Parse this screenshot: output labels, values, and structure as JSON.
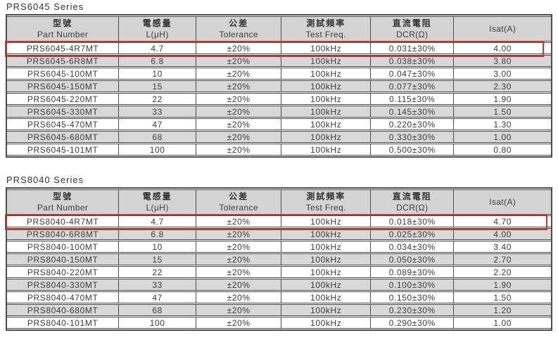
{
  "colors": {
    "accent": "#c7372d",
    "border": "#4d4d4d",
    "header-bg": "#d4d4d4",
    "stripe": "#d8d8d8",
    "text": "#3c3c3c",
    "page-bg": "#ffffff"
  },
  "tables": [
    {
      "title": "PRS6045 Series",
      "headers": [
        {
          "key": "part-number",
          "zh": "型號",
          "en": "Part Number"
        },
        {
          "key": "inductance",
          "zh": "電感量",
          "en": "L(μH)"
        },
        {
          "key": "tolerance",
          "zh": "公差",
          "en": "Tolerance"
        },
        {
          "key": "test-freq",
          "zh": "測試頻率",
          "en": "Test Freq."
        },
        {
          "key": "dcr",
          "zh": "直流電阻",
          "en": "DCR(Ω)"
        },
        {
          "key": "isat",
          "zh": "",
          "en": "Isat(A)"
        }
      ],
      "highlighted_row": 0,
      "rows": [
        [
          "PRS6045-4R7MT",
          "4.7",
          "±20%",
          "100kHz",
          "0.031±30%",
          "4.00"
        ],
        [
          "PRS6045-6R8MT",
          "6.8",
          "±20%",
          "100kHz",
          "0.038±30%",
          "3.80"
        ],
        [
          "PRS6045-100MT",
          "10",
          "±20%",
          "100kHz",
          "0.047±30%",
          "3.00"
        ],
        [
          "PRS6045-150MT",
          "15",
          "±20%",
          "100kHz",
          "0.077±30%",
          "2.30"
        ],
        [
          "PRS6045-220MT",
          "22",
          "±20%",
          "100kHz",
          "0.115±30%",
          "1.90"
        ],
        [
          "PRS6045-330MT",
          "33",
          "±20%",
          "100kHz",
          "0.145±30%",
          "1.50"
        ],
        [
          "PRS6045-470MT",
          "47",
          "±20%",
          "100kHz",
          "0.220±30%",
          "1.30"
        ],
        [
          "PRS6045-680MT",
          "68",
          "±20%",
          "100kHz",
          "0.330±30%",
          "1.00"
        ],
        [
          "PRS6045-101MT",
          "100",
          "±20%",
          "100kHz",
          "0.500±30%",
          "0.80"
        ]
      ]
    },
    {
      "title": "PRS8040 Series",
      "headers": [
        {
          "key": "part-number",
          "zh": "型號",
          "en": "Part Number"
        },
        {
          "key": "inductance",
          "zh": "電感量",
          "en": "L(μH)"
        },
        {
          "key": "tolerance",
          "zh": "公差",
          "en": "Tolerance"
        },
        {
          "key": "test-freq",
          "zh": "測試頻率",
          "en": "Test Freq."
        },
        {
          "key": "dcr",
          "zh": "直流電阻",
          "en": "DCR(Ω)"
        },
        {
          "key": "isat",
          "zh": "",
          "en": "Isat(A)"
        }
      ],
      "highlighted_row": 0,
      "rows": [
        [
          "PRS8040-4R7MT",
          "4.7",
          "±20%",
          "100kHz",
          "0.018±30%",
          "4.70"
        ],
        [
          "PRS8040-6R8MT",
          "6.8",
          "±20%",
          "100kHz",
          "0.025±30%",
          "4.00"
        ],
        [
          "PRS8040-100MT",
          "10",
          "±20%",
          "100kHz",
          "0.034±30%",
          "3.40"
        ],
        [
          "PRS8040-150MT",
          "15",
          "±20%",
          "100kHz",
          "0.050±30%",
          "2.70"
        ],
        [
          "PRS8040-220MT",
          "22",
          "±20%",
          "100kHz",
          "0.089±30%",
          "2.20"
        ],
        [
          "PRS8040-330MT",
          "33",
          "±20%",
          "100kHz",
          "0.100±30%",
          "1.90"
        ],
        [
          "PRS8040-470MT",
          "47",
          "±20%",
          "100kHz",
          "0.150±30%",
          "1.50"
        ],
        [
          "PRS8040-680MT",
          "68",
          "±20%",
          "100kHz",
          "0.230±30%",
          "1.20"
        ],
        [
          "PRS8040-101MT",
          "100",
          "±20%",
          "100kHz",
          "0.290±30%",
          "1.00"
        ]
      ]
    }
  ]
}
